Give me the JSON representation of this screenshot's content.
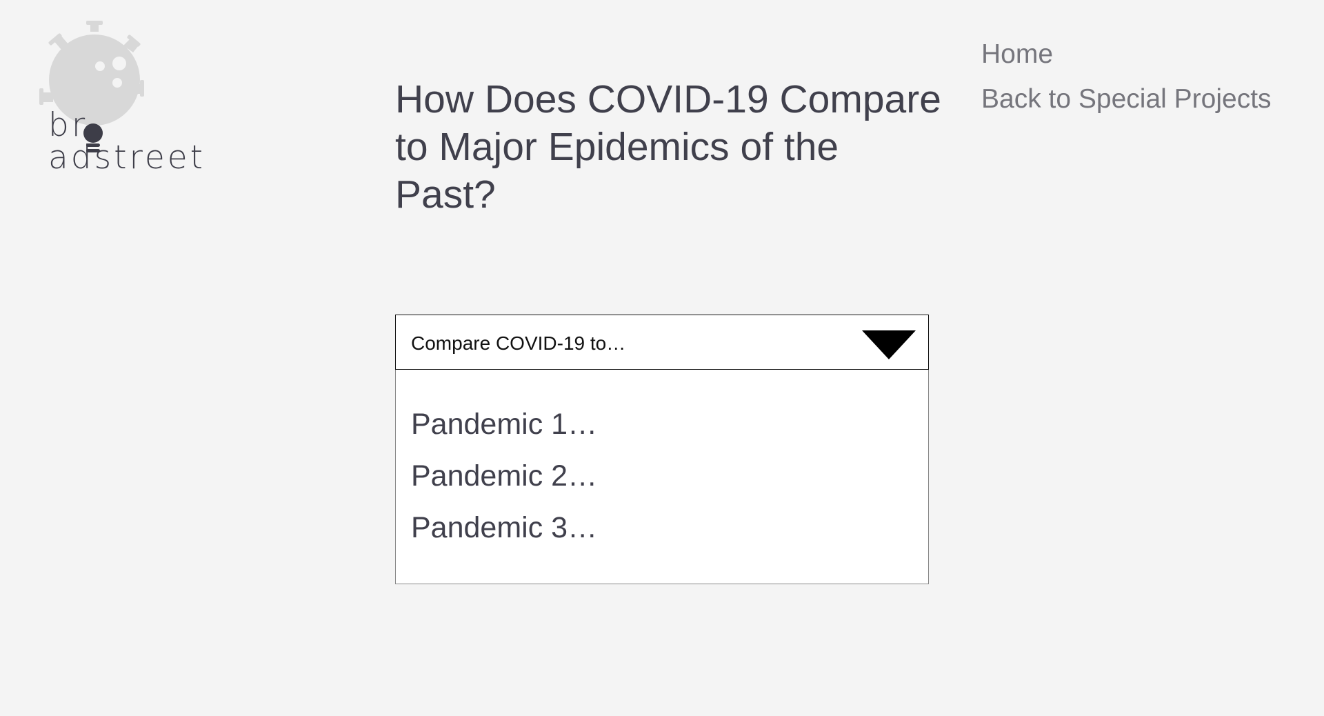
{
  "logo": {
    "wordmark": "broadstreet",
    "wordmark_left": "br",
    "wordmark_right": "adstreet",
    "icon": "virus-bulb-icon",
    "virus_color": "#d8d8d8",
    "bulb_color": "#3d3d48"
  },
  "nav": {
    "home_label": "Home",
    "back_label": "Back to Special Projects"
  },
  "page": {
    "title": "How Does COVID-19 Compare to Major Epidemics of the Past?"
  },
  "select": {
    "label": "Compare COVID-19 to…",
    "arrow_icon": "triangle-down-icon",
    "options": [
      "Pandemic 1…",
      "Pandemic 2…",
      "Pandemic 3…"
    ]
  },
  "colors": {
    "background": "#f4f4f4",
    "title_text": "#40404c",
    "nav_text": "#75757c",
    "panel": "#ffffff"
  }
}
